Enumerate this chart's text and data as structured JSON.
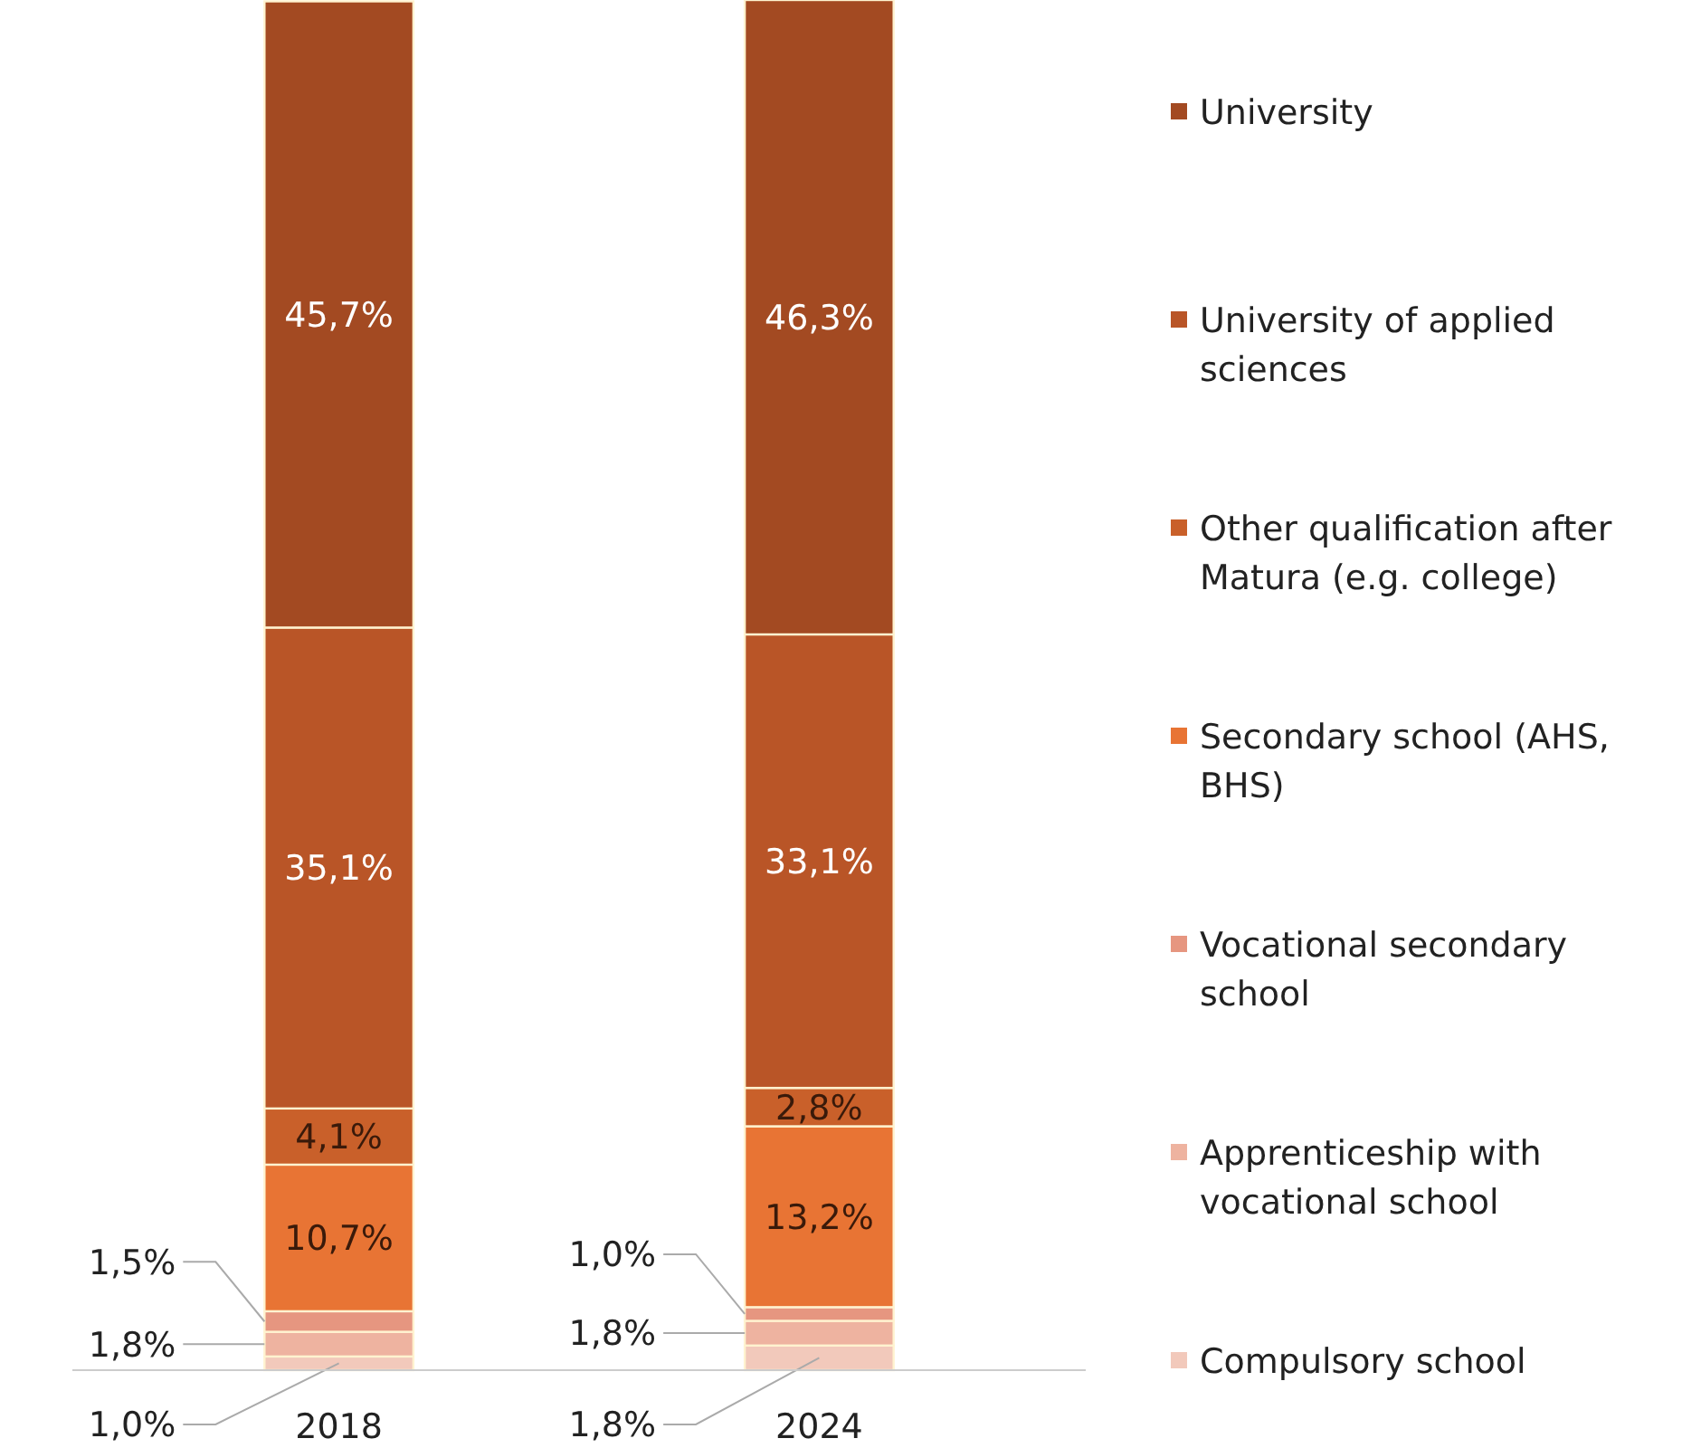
{
  "chart_data": {
    "type": "bar",
    "stacked": true,
    "categories": [
      "2018",
      "2024"
    ],
    "ylim": [
      0,
      100
    ],
    "tick_labels": "x",
    "legend": "right",
    "series": [
      {
        "name": "Compulsory school",
        "color": "#f2c9bb",
        "values": [
          1.0,
          1.8
        ],
        "value_labels": [
          "1,0%",
          "1,8%"
        ]
      },
      {
        "name": "Apprenticeship with vocational school",
        "color": "#eeb3a0",
        "values": [
          1.8,
          1.8
        ],
        "value_labels": [
          "1,8%",
          "1,8%"
        ]
      },
      {
        "name": "Vocational secondary school",
        "color": "#e69680",
        "values": [
          1.5,
          1.0
        ],
        "value_labels": [
          "1,5%",
          "1,0%"
        ]
      },
      {
        "name": "Secondary school (AHS, BHS)",
        "color": "#e87434",
        "values": [
          10.7,
          13.2
        ],
        "value_labels": [
          "10,7%",
          "13,2%"
        ]
      },
      {
        "name": "Other qualification after Matura (e.g. college)",
        "color": "#c9602a",
        "values": [
          4.1,
          2.8
        ],
        "value_labels": [
          "4,1%",
          "2,8%"
        ]
      },
      {
        "name": "University of applied sciences",
        "color": "#b95527",
        "values": [
          35.1,
          33.1
        ],
        "value_labels": [
          "35,1%",
          "33,1%"
        ]
      },
      {
        "name": "University",
        "color": "#a34a22",
        "values": [
          45.7,
          46.3
        ],
        "value_labels": [
          "45,7%",
          "46,3%"
        ]
      }
    ]
  }
}
